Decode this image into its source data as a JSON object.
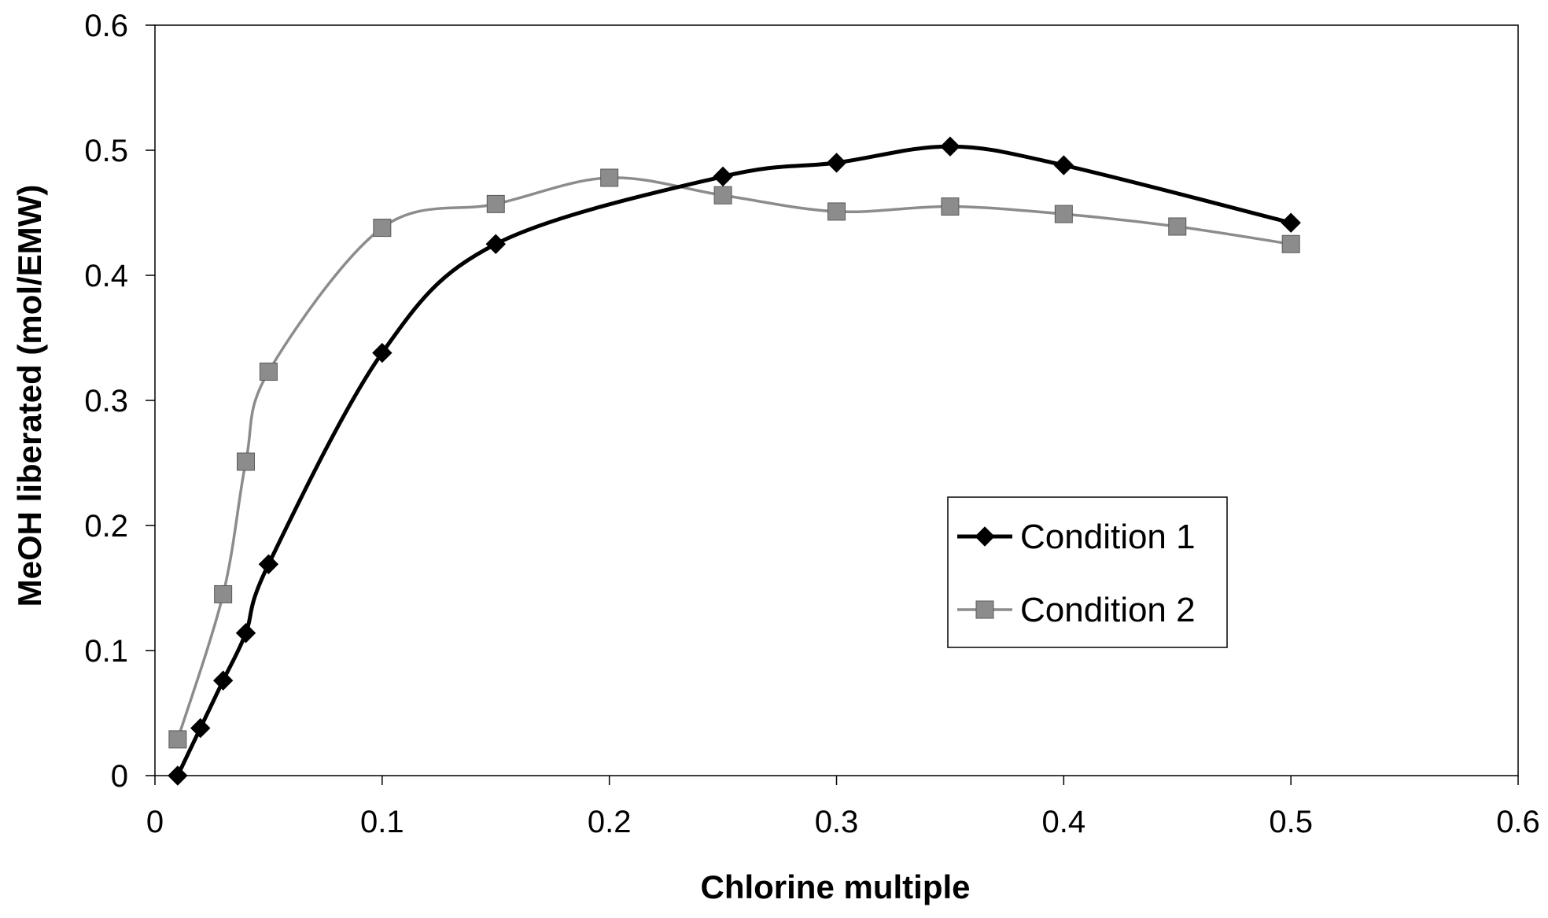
{
  "chart_data": {
    "type": "line",
    "title": "",
    "xlabel": "Chlorine multiple",
    "ylabel": "MeOH liberated (mol/EMW)",
    "xlim": [
      0,
      0.6
    ],
    "ylim": [
      0,
      0.6
    ],
    "xticks": [
      0,
      0.1,
      0.2,
      0.3,
      0.4,
      0.5,
      0.6
    ],
    "yticks": [
      0,
      0.1,
      0.2,
      0.3,
      0.4,
      0.5,
      0.6
    ],
    "xtick_labels": [
      "0",
      "0.1",
      "0.2",
      "0.3",
      "0.4",
      "0.5",
      "0.6"
    ],
    "ytick_labels": [
      "0",
      "0.1",
      "0.2",
      "0.3",
      "0.4",
      "0.5",
      "0.6"
    ],
    "grid": false,
    "legend_position": "right",
    "smooth": true,
    "series": [
      {
        "name": "Condition 1",
        "marker": "diamond",
        "color": "#000000",
        "x": [
          0.01,
          0.02,
          0.03,
          0.04,
          0.05,
          0.1,
          0.15,
          0.25,
          0.3,
          0.35,
          0.4,
          0.5
        ],
        "y": [
          0.0,
          0.038,
          0.076,
          0.114,
          0.169,
          0.338,
          0.425,
          0.479,
          0.49,
          0.503,
          0.488,
          0.442
        ]
      },
      {
        "name": "Condition 2",
        "marker": "square",
        "color": "#8c8c8c",
        "x": [
          0.01,
          0.03,
          0.04,
          0.05,
          0.1,
          0.15,
          0.2,
          0.25,
          0.3,
          0.35,
          0.4,
          0.45,
          0.5
        ],
        "y": [
          0.029,
          0.145,
          0.251,
          0.323,
          0.438,
          0.457,
          0.478,
          0.464,
          0.451,
          0.455,
          0.449,
          0.439,
          0.425
        ]
      }
    ]
  }
}
